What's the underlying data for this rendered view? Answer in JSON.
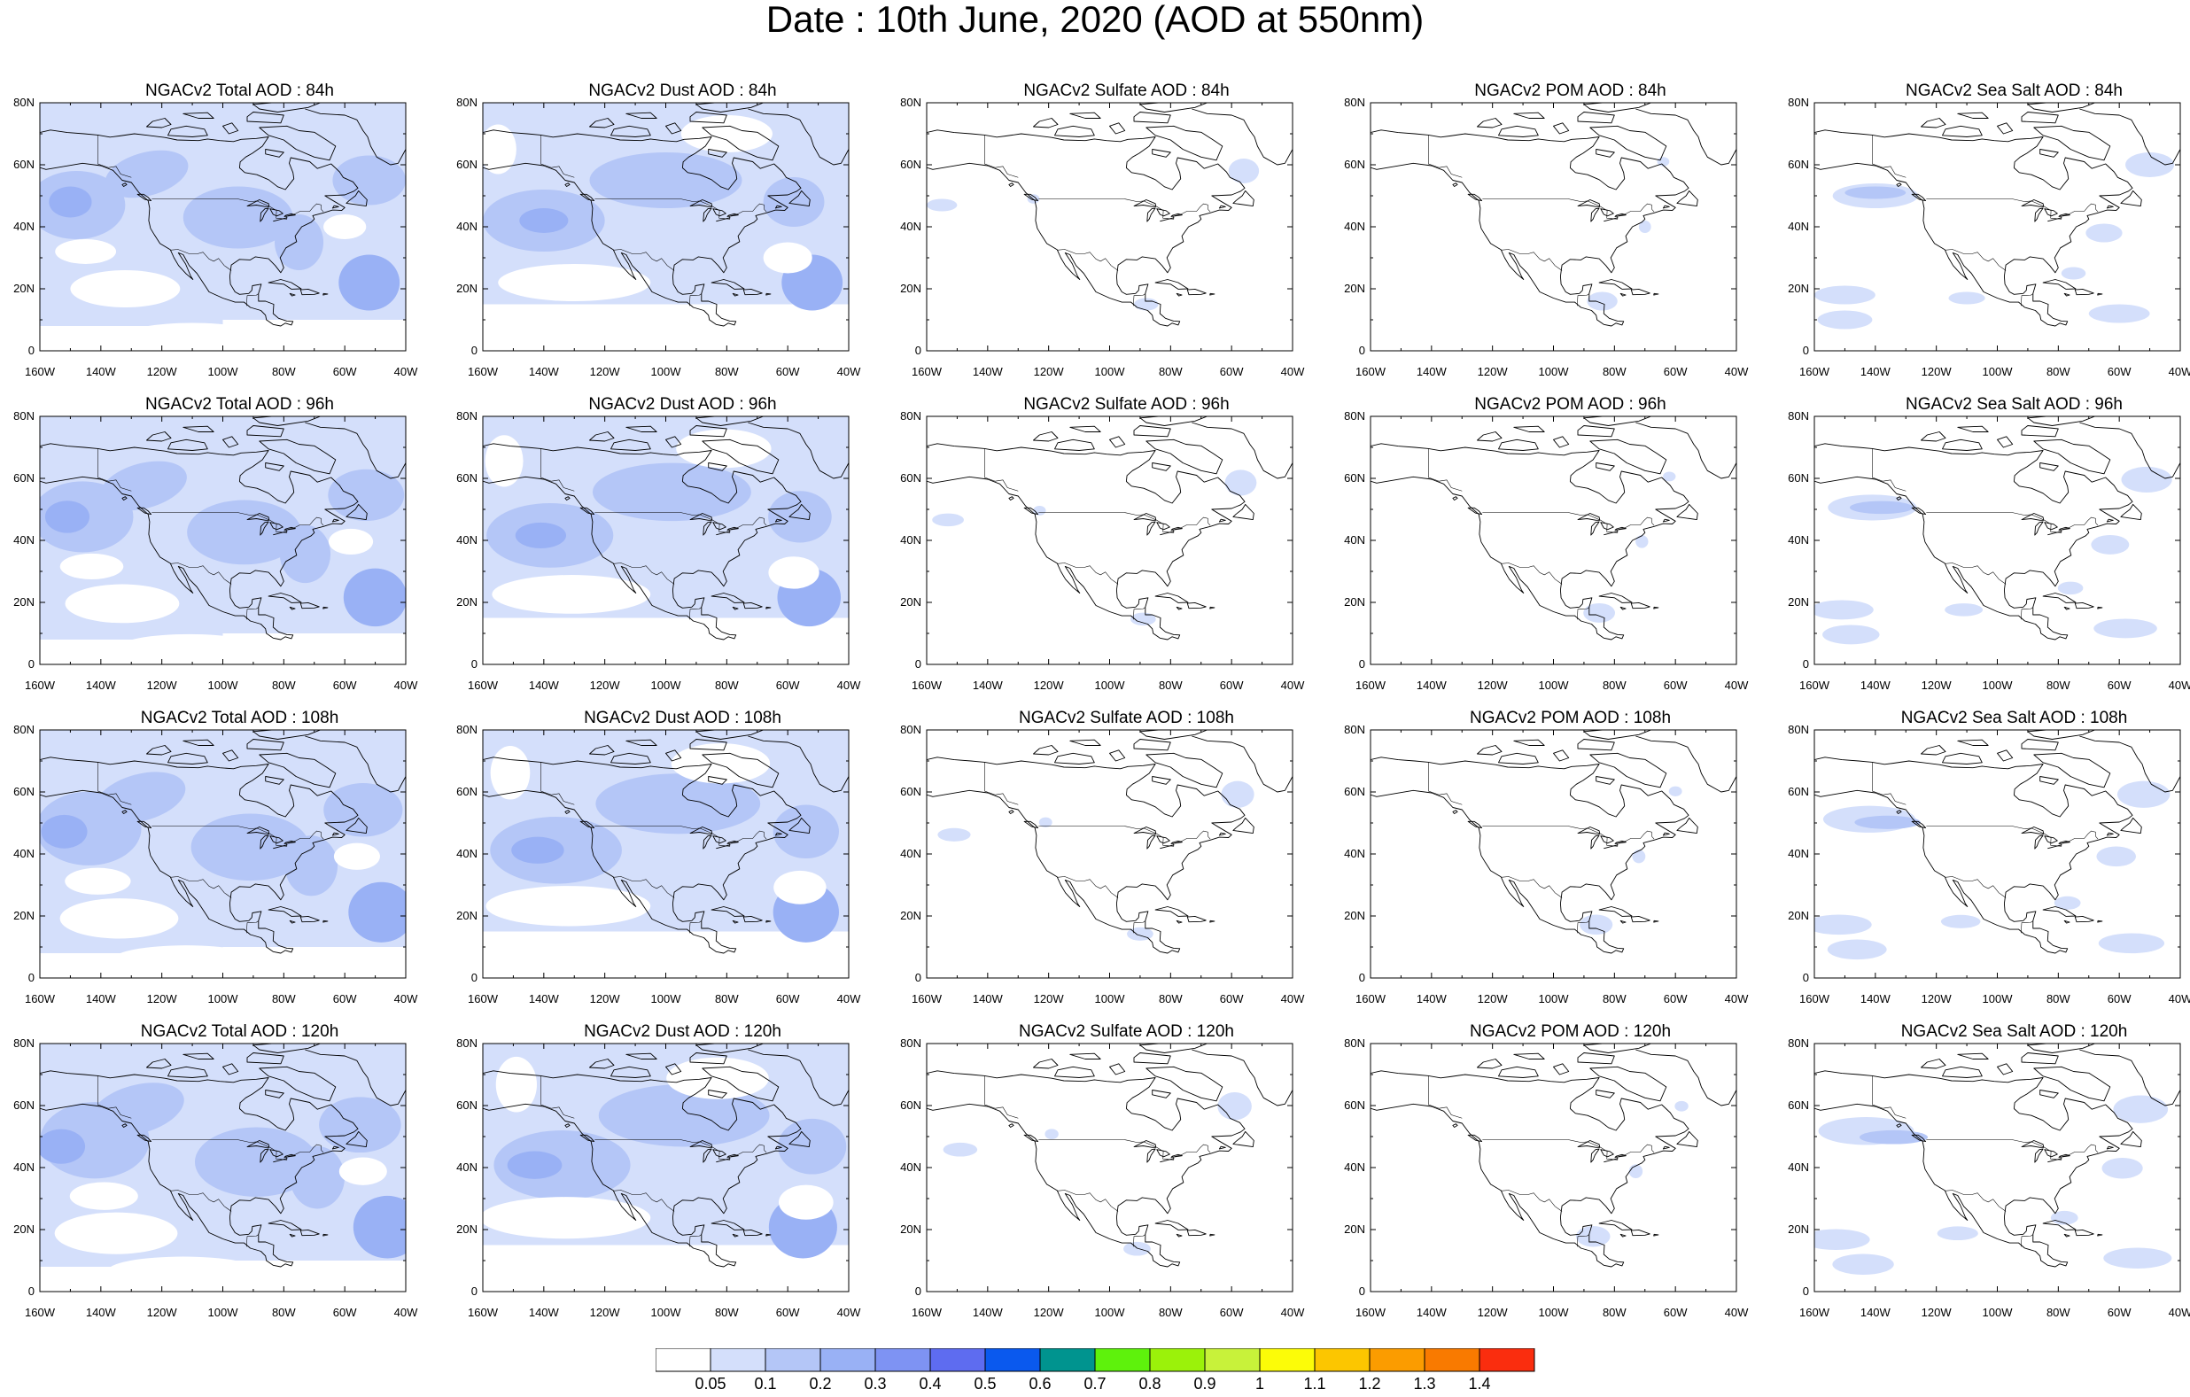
{
  "title": "Date : 10th June, 2020 (AOD at 550nm)",
  "rows": [
    {
      "forecast_hour": "84h",
      "panels": [
        {
          "species": "total",
          "title": "NGACv2 Total AOD : 84h"
        },
        {
          "species": "dust",
          "title": "NGACv2 Dust AOD : 84h"
        },
        {
          "species": "sulfate",
          "title": "NGACv2 Sulfate AOD : 84h"
        },
        {
          "species": "pom",
          "title": "NGACv2 POM AOD : 84h"
        },
        {
          "species": "seasalt",
          "title": "NGACv2 Sea Salt AOD : 84h"
        }
      ]
    },
    {
      "forecast_hour": "96h",
      "panels": [
        {
          "species": "total",
          "title": "NGACv2 Total AOD : 96h"
        },
        {
          "species": "dust",
          "title": "NGACv2 Dust AOD : 96h"
        },
        {
          "species": "sulfate",
          "title": "NGACv2 Sulfate AOD : 96h"
        },
        {
          "species": "pom",
          "title": "NGACv2 POM AOD : 96h"
        },
        {
          "species": "seasalt",
          "title": "NGACv2 Sea Salt AOD : 96h"
        }
      ]
    },
    {
      "forecast_hour": "108h",
      "panels": [
        {
          "species": "total",
          "title": "NGACv2 Total AOD : 108h"
        },
        {
          "species": "dust",
          "title": "NGACv2 Dust AOD : 108h"
        },
        {
          "species": "sulfate",
          "title": "NGACv2 Sulfate AOD : 108h"
        },
        {
          "species": "pom",
          "title": "NGACv2 POM AOD : 108h"
        },
        {
          "species": "seasalt",
          "title": "NGACv2 Sea Salt AOD : 108h"
        }
      ]
    },
    {
      "forecast_hour": "120h",
      "panels": [
        {
          "species": "total",
          "title": "NGACv2 Total AOD : 120h"
        },
        {
          "species": "dust",
          "title": "NGACv2 Dust AOD : 120h"
        },
        {
          "species": "sulfate",
          "title": "NGACv2 Sulfate AOD : 120h"
        },
        {
          "species": "pom",
          "title": "NGACv2 POM AOD : 120h"
        },
        {
          "species": "seasalt",
          "title": "NGACv2 Sea Salt  AOD : 120h"
        }
      ]
    }
  ],
  "map": {
    "lon_range": [
      -160,
      -40
    ],
    "lat_range": [
      0,
      80
    ],
    "lon_ticks": [
      "160W",
      "140W",
      "120W",
      "100W",
      "80W",
      "60W",
      "40W"
    ],
    "lat_ticks": [
      "0",
      "20N",
      "40N",
      "60N",
      "80N"
    ]
  },
  "colorbar": {
    "colors": [
      "#ffffff",
      "#d4dffb",
      "#b4c6f7",
      "#99b1f5",
      "#7e93f3",
      "#5e6cf0",
      "#0a59ee",
      "#00948f",
      "#5ef20c",
      "#9bf20a",
      "#c8f23a",
      "#fcfc08",
      "#fcc600",
      "#fb9c00",
      "#f97a00",
      "#fa2d0e"
    ],
    "labels": [
      "0.05",
      "0.1",
      "0.2",
      "0.3",
      "0.4",
      "0.5",
      "0.6",
      "0.7",
      "0.8",
      "0.9",
      "1",
      "1.1",
      "1.2",
      "1.3",
      "1.4"
    ]
  },
  "fill_colors": {
    "light": "#d4dffb",
    "medium": "#b4c6f7",
    "strong": "#99b1f5"
  }
}
